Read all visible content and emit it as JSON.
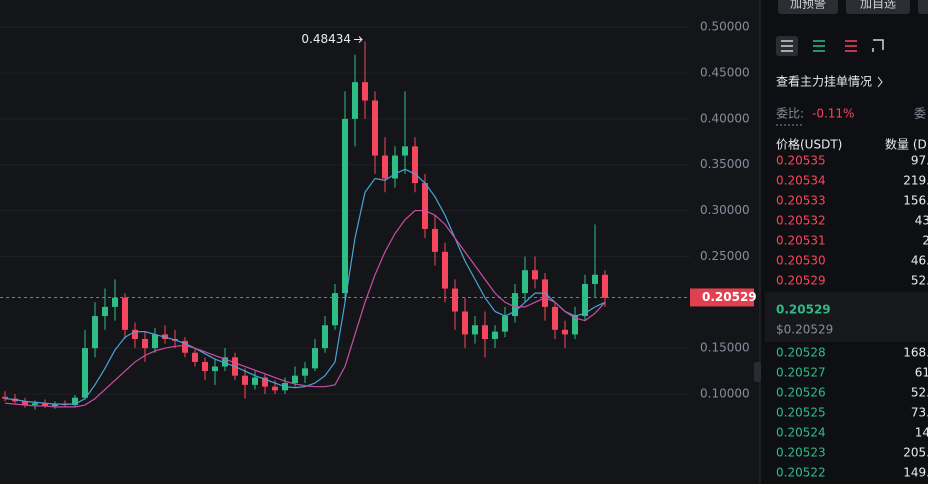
{
  "chart_data": {
    "type": "candlestick",
    "up_color": "#2ebd85",
    "down_color": "#f6465d",
    "ylim": [
      0.0019,
      0.5296
    ],
    "yticks": [
      {
        "value": 0.5,
        "label": "0.50000"
      },
      {
        "value": 0.45,
        "label": "0.45000"
      },
      {
        "value": 0.4,
        "label": "0.40000"
      },
      {
        "value": 0.35,
        "label": "0.35000"
      },
      {
        "value": 0.3,
        "label": "0.30000"
      },
      {
        "value": 0.25,
        "label": "0.25000"
      },
      {
        "value": 0.15,
        "label": "0.15000"
      },
      {
        "value": 0.1,
        "label": "0.10000"
      }
    ],
    "grid": true,
    "candles": [
      [
        0.097,
        0.103,
        0.092,
        0.095
      ],
      [
        0.095,
        0.1,
        0.09,
        0.092
      ],
      [
        0.092,
        0.096,
        0.085,
        0.088
      ],
      [
        0.088,
        0.093,
        0.083,
        0.09
      ],
      [
        0.09,
        0.094,
        0.085,
        0.087
      ],
      [
        0.087,
        0.092,
        0.084,
        0.089
      ],
      [
        0.089,
        0.093,
        0.086,
        0.088
      ],
      [
        0.088,
        0.099,
        0.086,
        0.096
      ],
      [
        0.096,
        0.17,
        0.094,
        0.15
      ],
      [
        0.15,
        0.2,
        0.14,
        0.185
      ],
      [
        0.185,
        0.215,
        0.17,
        0.195
      ],
      [
        0.195,
        0.225,
        0.18,
        0.205
      ],
      [
        0.205,
        0.21,
        0.16,
        0.17
      ],
      [
        0.17,
        0.178,
        0.15,
        0.16
      ],
      [
        0.16,
        0.168,
        0.135,
        0.15
      ],
      [
        0.15,
        0.172,
        0.145,
        0.165
      ],
      [
        0.165,
        0.175,
        0.155,
        0.16
      ],
      [
        0.16,
        0.17,
        0.15,
        0.158
      ],
      [
        0.158,
        0.162,
        0.14,
        0.145
      ],
      [
        0.145,
        0.15,
        0.13,
        0.135
      ],
      [
        0.135,
        0.14,
        0.115,
        0.125
      ],
      [
        0.125,
        0.138,
        0.11,
        0.13
      ],
      [
        0.13,
        0.15,
        0.125,
        0.14
      ],
      [
        0.14,
        0.145,
        0.115,
        0.12
      ],
      [
        0.12,
        0.128,
        0.095,
        0.11
      ],
      [
        0.11,
        0.125,
        0.105,
        0.118
      ],
      [
        0.118,
        0.122,
        0.1,
        0.108
      ],
      [
        0.108,
        0.115,
        0.1,
        0.104
      ],
      [
        0.104,
        0.118,
        0.1,
        0.112
      ],
      [
        0.112,
        0.13,
        0.108,
        0.12
      ],
      [
        0.12,
        0.135,
        0.112,
        0.128
      ],
      [
        0.128,
        0.16,
        0.125,
        0.15
      ],
      [
        0.15,
        0.185,
        0.145,
        0.175
      ],
      [
        0.175,
        0.22,
        0.17,
        0.21
      ],
      [
        0.21,
        0.43,
        0.2,
        0.4
      ],
      [
        0.4,
        0.47,
        0.37,
        0.44
      ],
      [
        0.44,
        0.48434,
        0.4,
        0.42
      ],
      [
        0.42,
        0.43,
        0.34,
        0.36
      ],
      [
        0.36,
        0.38,
        0.32,
        0.335
      ],
      [
        0.335,
        0.37,
        0.325,
        0.36
      ],
      [
        0.36,
        0.43,
        0.34,
        0.37
      ],
      [
        0.37,
        0.38,
        0.32,
        0.33
      ],
      [
        0.33,
        0.34,
        0.27,
        0.28
      ],
      [
        0.28,
        0.295,
        0.24,
        0.255
      ],
      [
        0.255,
        0.265,
        0.2,
        0.215
      ],
      [
        0.215,
        0.225,
        0.17,
        0.19
      ],
      [
        0.19,
        0.205,
        0.15,
        0.165
      ],
      [
        0.165,
        0.185,
        0.155,
        0.175
      ],
      [
        0.175,
        0.19,
        0.14,
        0.16
      ],
      [
        0.16,
        0.175,
        0.15,
        0.168
      ],
      [
        0.168,
        0.195,
        0.162,
        0.185
      ],
      [
        0.185,
        0.22,
        0.178,
        0.21
      ],
      [
        0.21,
        0.25,
        0.2,
        0.235
      ],
      [
        0.235,
        0.25,
        0.215,
        0.225
      ],
      [
        0.225,
        0.232,
        0.18,
        0.195
      ],
      [
        0.195,
        0.2,
        0.16,
        0.17
      ],
      [
        0.17,
        0.18,
        0.15,
        0.165
      ],
      [
        0.165,
        0.195,
        0.16,
        0.185
      ],
      [
        0.185,
        0.23,
        0.18,
        0.22
      ],
      [
        0.22,
        0.285,
        0.205,
        0.23
      ],
      [
        0.23,
        0.235,
        0.195,
        0.205
      ]
    ],
    "ma_lines": [
      {
        "color": "#4aa3d9",
        "values": [
          0.095,
          0.094,
          0.092,
          0.091,
          0.09,
          0.089,
          0.089,
          0.089,
          0.095,
          0.11,
          0.128,
          0.148,
          0.162,
          0.168,
          0.168,
          0.165,
          0.162,
          0.159,
          0.155,
          0.15,
          0.144,
          0.138,
          0.134,
          0.13,
          0.125,
          0.12,
          0.116,
          0.112,
          0.108,
          0.107,
          0.108,
          0.112,
          0.12,
          0.135,
          0.2,
          0.27,
          0.32,
          0.335,
          0.333,
          0.34,
          0.345,
          0.34,
          0.33,
          0.315,
          0.295,
          0.27,
          0.245,
          0.225,
          0.205,
          0.19,
          0.185,
          0.19,
          0.2,
          0.21,
          0.21,
          0.2,
          0.19,
          0.185,
          0.188,
          0.195,
          0.2
        ]
      },
      {
        "color": "#c94fa6",
        "values": [
          0.09,
          0.089,
          0.088,
          0.087,
          0.087,
          0.086,
          0.086,
          0.086,
          0.088,
          0.095,
          0.105,
          0.115,
          0.125,
          0.135,
          0.142,
          0.147,
          0.15,
          0.152,
          0.153,
          0.15,
          0.146,
          0.142,
          0.138,
          0.134,
          0.13,
          0.126,
          0.122,
          0.118,
          0.114,
          0.111,
          0.109,
          0.108,
          0.108,
          0.11,
          0.13,
          0.165,
          0.2,
          0.23,
          0.255,
          0.275,
          0.29,
          0.3,
          0.3,
          0.295,
          0.285,
          0.27,
          0.255,
          0.24,
          0.225,
          0.21,
          0.2,
          0.195,
          0.195,
          0.2,
          0.205,
          0.2,
          0.19,
          0.183,
          0.18,
          0.188,
          0.2
        ]
      }
    ],
    "current_price": {
      "value": 0.20529,
      "label": "0.20529"
    },
    "peak_annotation": {
      "value": 0.48434,
      "label": "0.48434"
    }
  },
  "panel": {
    "buttons": [
      "加预警",
      "加自选"
    ],
    "link": "查看主力挂单情况",
    "ratio_label": "委比:",
    "ratio_value": "-0.11%",
    "ratio_right": "委",
    "headers": [
      "价格(USDT)",
      "数量 (D"
    ],
    "asks": [
      [
        "0.20535",
        "97."
      ],
      [
        "0.20534",
        "219."
      ],
      [
        "0.20533",
        "156."
      ],
      [
        "0.20532",
        "43"
      ],
      [
        "0.20531",
        "2"
      ],
      [
        "0.20530",
        "46."
      ],
      [
        "0.20529",
        "52."
      ]
    ],
    "last_price": "0.20529",
    "last_price_usd": "$0.20529",
    "bids": [
      [
        "0.20528",
        "168."
      ],
      [
        "0.20527",
        "61"
      ],
      [
        "0.20526",
        "52."
      ],
      [
        "0.20525",
        "73."
      ],
      [
        "0.20524",
        "14"
      ],
      [
        "0.20523",
        "205."
      ],
      [
        "0.20522",
        "149."
      ]
    ]
  }
}
